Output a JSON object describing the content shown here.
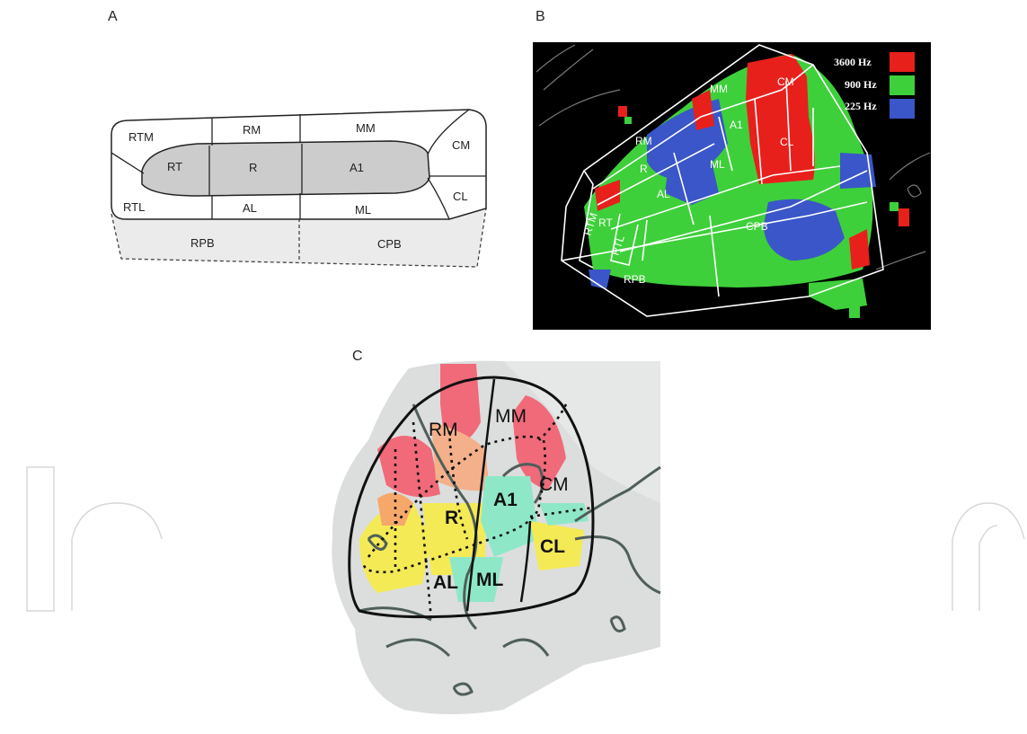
{
  "panels": {
    "A": {
      "letter": "A",
      "fields": {
        "RTM": "RTM",
        "RM": "RM",
        "MM": "MM",
        "CM": "CM",
        "RT": "RT",
        "R": "R",
        "A1": "A1",
        "RTL": "RTL",
        "AL": "AL",
        "ML": "ML",
        "CL": "CL",
        "RPB": "RPB",
        "CPB": "CPB"
      }
    },
    "B": {
      "letter": "B",
      "fields": {
        "MM": "MM",
        "CM": "CM",
        "A1": "A1",
        "RM": "RM",
        "R": "R",
        "CL": "CL",
        "ML": "ML",
        "AL": "AL",
        "RTM": "RTM",
        "RT": "RT",
        "RTL": "RTL",
        "CPB": "CPB",
        "RPB": "RPB"
      },
      "legend": [
        {
          "label": "3600 Hz",
          "color": "#e8201c"
        },
        {
          "label": "900 Hz",
          "color": "#3ed03a"
        },
        {
          "label": "225 Hz",
          "color": "#3a56c8"
        }
      ]
    },
    "C": {
      "letter": "C",
      "fields": {
        "RM": "RM",
        "MM": "MM",
        "CM": "CM",
        "A1": "A1",
        "R": "R",
        "CL": "CL",
        "AL": "AL",
        "ML": "ML"
      }
    }
  }
}
